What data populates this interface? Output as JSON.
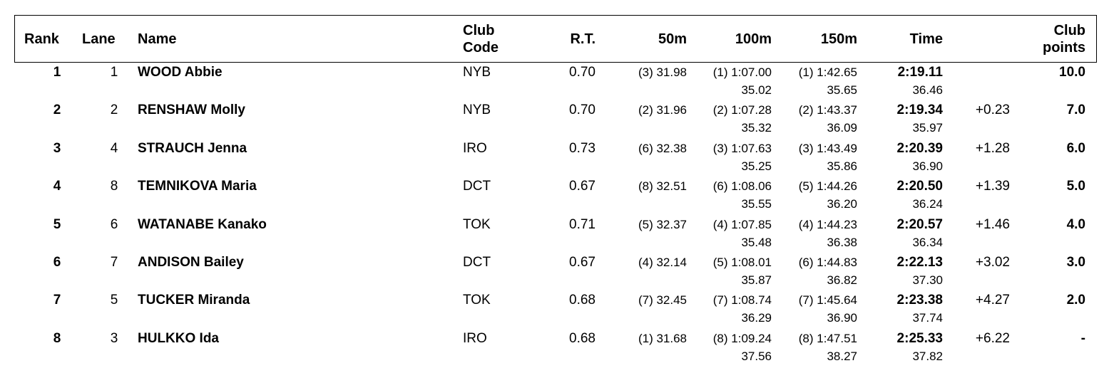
{
  "headers": {
    "rank": "Rank",
    "lane": "Lane",
    "name": "Name",
    "club_code_1": "Club",
    "club_code_2": "Code",
    "rt": "R.T.",
    "split50": "50m",
    "split100": "100m",
    "split150": "150m",
    "time": "Time",
    "club_points_1": "Club",
    "club_points_2": "points"
  },
  "rows": [
    {
      "rank": "1",
      "lane": "1",
      "name": "WOOD Abbie",
      "club": "NYB",
      "rt": "0.70",
      "s50": "(3) 31.98",
      "s100": "(1) 1:07.00",
      "s100b": "35.02",
      "s150": "(1) 1:42.65",
      "s150b": "35.65",
      "time": "2:19.11",
      "timeb": "36.46",
      "behind": "",
      "points": "10.0"
    },
    {
      "rank": "2",
      "lane": "2",
      "name": "RENSHAW Molly",
      "club": "NYB",
      "rt": "0.70",
      "s50": "(2) 31.96",
      "s100": "(2) 1:07.28",
      "s100b": "35.32",
      "s150": "(2) 1:43.37",
      "s150b": "36.09",
      "time": "2:19.34",
      "timeb": "35.97",
      "behind": "+0.23",
      "points": "7.0"
    },
    {
      "rank": "3",
      "lane": "4",
      "name": "STRAUCH Jenna",
      "club": "IRO",
      "rt": "0.73",
      "s50": "(6) 32.38",
      "s100": "(3) 1:07.63",
      "s100b": "35.25",
      "s150": "(3) 1:43.49",
      "s150b": "35.86",
      "time": "2:20.39",
      "timeb": "36.90",
      "behind": "+1.28",
      "points": "6.0"
    },
    {
      "rank": "4",
      "lane": "8",
      "name": "TEMNIKOVA Maria",
      "club": "DCT",
      "rt": "0.67",
      "s50": "(8) 32.51",
      "s100": "(6) 1:08.06",
      "s100b": "35.55",
      "s150": "(5) 1:44.26",
      "s150b": "36.20",
      "time": "2:20.50",
      "timeb": "36.24",
      "behind": "+1.39",
      "points": "5.0"
    },
    {
      "rank": "5",
      "lane": "6",
      "name": "WATANABE Kanako",
      "club": "TOK",
      "rt": "0.71",
      "s50": "(5) 32.37",
      "s100": "(4) 1:07.85",
      "s100b": "35.48",
      "s150": "(4) 1:44.23",
      "s150b": "36.38",
      "time": "2:20.57",
      "timeb": "36.34",
      "behind": "+1.46",
      "points": "4.0"
    },
    {
      "rank": "6",
      "lane": "7",
      "name": "ANDISON Bailey",
      "club": "DCT",
      "rt": "0.67",
      "s50": "(4) 32.14",
      "s100": "(5) 1:08.01",
      "s100b": "35.87",
      "s150": "(6) 1:44.83",
      "s150b": "36.82",
      "time": "2:22.13",
      "timeb": "37.30",
      "behind": "+3.02",
      "points": "3.0"
    },
    {
      "rank": "7",
      "lane": "5",
      "name": "TUCKER Miranda",
      "club": "TOK",
      "rt": "0.68",
      "s50": "(7) 32.45",
      "s100": "(7) 1:08.74",
      "s100b": "36.29",
      "s150": "(7) 1:45.64",
      "s150b": "36.90",
      "time": "2:23.38",
      "timeb": "37.74",
      "behind": "+4.27",
      "points": "2.0"
    },
    {
      "rank": "8",
      "lane": "3",
      "name": "HULKKO Ida",
      "club": "IRO",
      "rt": "0.68",
      "s50": "(1) 31.68",
      "s100": "(8) 1:09.24",
      "s100b": "37.56",
      "s150": "(8) 1:47.51",
      "s150b": "38.27",
      "time": "2:25.33",
      "timeb": "37.82",
      "behind": "+6.22",
      "points": "-"
    }
  ]
}
